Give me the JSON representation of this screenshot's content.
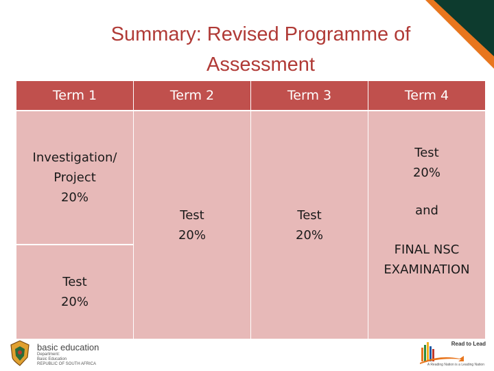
{
  "title": {
    "line1": "Summary: Revised Programme of",
    "line2": "Assessment"
  },
  "table": {
    "headers": [
      "Term 1",
      "Term 2",
      "Term 3",
      "Term 4"
    ],
    "term1": {
      "top": [
        "Investigation/",
        "Project",
        "20%"
      ],
      "bottom": [
        "Test",
        "20%"
      ]
    },
    "term2": [
      "Test",
      "20%"
    ],
    "term3": [
      "Test",
      "20%"
    ],
    "term4": {
      "test": [
        "Test",
        "20%"
      ],
      "and": "and",
      "final": [
        "FINAL NSC",
        "EXAMINATION"
      ]
    }
  },
  "footer": {
    "logo_name": "basic education",
    "logo_sub": [
      "Department:",
      "Basic Education",
      "REPUBLIC OF SOUTH AFRICA"
    ],
    "rtl_label": "Read to Lead",
    "rtl_tagline": "A Reading Nation is a Leading Nation"
  },
  "colors": {
    "title": "#b03a36",
    "header_bg": "#c0504d",
    "cell_bg": "#e7b9b8",
    "corner_dark": "#0d3b2e",
    "corner_orange": "#e8761e"
  }
}
